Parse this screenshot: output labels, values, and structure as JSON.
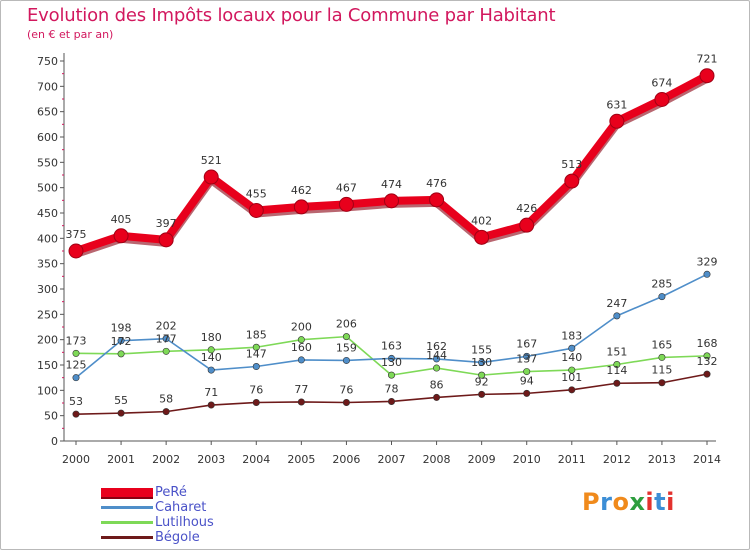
{
  "header": {
    "title": "Evolution des Impôts locaux pour la Commune par Habitant",
    "subtitle": "(en € et par an)"
  },
  "brand": {
    "letters": [
      "P",
      "r",
      "o",
      "x",
      "i",
      "t",
      "i"
    ],
    "colors": [
      "#f08a1c",
      "#3c8ed6",
      "#f08a1c",
      "#2e9e3e",
      "#e3322e",
      "#3c8ed6",
      "#e3322e"
    ]
  },
  "chart_data": {
    "type": "line",
    "title": "Evolution des Impôts locaux pour la Commune par Habitant",
    "subtitle": "(en € et par an)",
    "xlabel": "",
    "ylabel": "",
    "x": [
      "2000",
      "2001",
      "2002",
      "2003",
      "2004",
      "2005",
      "2006",
      "2007",
      "2008",
      "2009",
      "2010",
      "2011",
      "2012",
      "2013",
      "2014"
    ],
    "ylim": [
      0,
      750
    ],
    "yticks": [
      0,
      50,
      100,
      150,
      200,
      250,
      300,
      350,
      400,
      450,
      500,
      550,
      600,
      650,
      700,
      750
    ],
    "grid": false,
    "legend_position": "bottom-left",
    "series": [
      {
        "name": "PeRé",
        "color": "#e8001c",
        "values": [
          375,
          405,
          397,
          521,
          455,
          462,
          467,
          474,
          476,
          402,
          426,
          513,
          631,
          674,
          721
        ]
      },
      {
        "name": "Caharet",
        "color": "#4f8ec9",
        "values": [
          125,
          198,
          202,
          140,
          147,
          160,
          159,
          163,
          162,
          155,
          167,
          183,
          247,
          285,
          329
        ]
      },
      {
        "name": "Lutilhous",
        "color": "#7ed957",
        "values": [
          173,
          172,
          177,
          180,
          185,
          200,
          206,
          130,
          144,
          130,
          137,
          140,
          151,
          165,
          168
        ]
      },
      {
        "name": "Bégole",
        "color": "#6e1a1a",
        "values": [
          53,
          55,
          58,
          71,
          76,
          77,
          76,
          78,
          86,
          92,
          94,
          101,
          114,
          115,
          132
        ]
      }
    ]
  }
}
